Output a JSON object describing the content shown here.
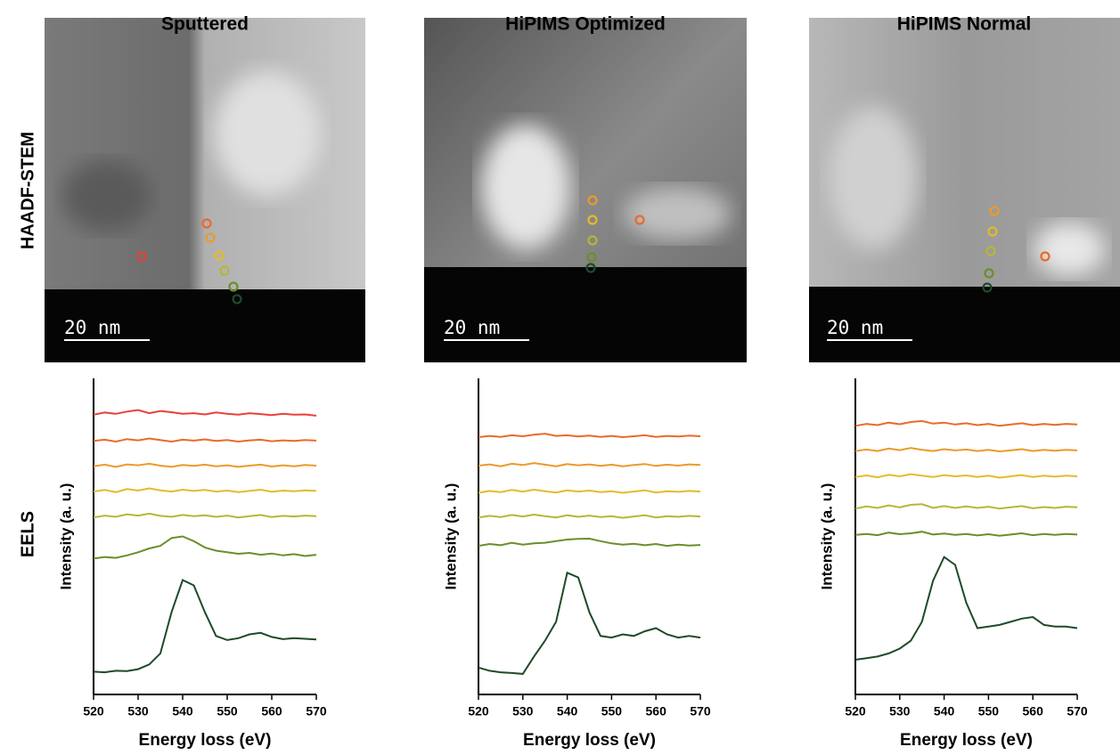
{
  "row_labels": [
    "HAADF-STEM",
    "EELS"
  ],
  "chart_data": [
    {
      "type": "line",
      "title": "Sputtered",
      "scale_bar": "20 nm",
      "x_label": "Energy loss (eV)",
      "y_label": "Intensity (a. u.)",
      "x": [
        520,
        522.5,
        525,
        527.5,
        530,
        532.5,
        535,
        537.5,
        540,
        542.5,
        545,
        547.5,
        550,
        552.5,
        555,
        557.5,
        560,
        562.5,
        565,
        567.5,
        570
      ],
      "xlim": [
        520,
        570
      ],
      "xticks": [
        520,
        530,
        540,
        550,
        560,
        570
      ],
      "ylim": [
        0,
        10
      ],
      "series": [
        {
          "color": "#e8403a",
          "values": [
            8.85,
            8.92,
            8.88,
            8.95,
            9.0,
            8.9,
            8.97,
            8.93,
            8.88,
            8.9,
            8.86,
            8.92,
            8.88,
            8.85,
            8.9,
            8.87,
            8.84,
            8.88,
            8.85,
            8.86,
            8.82
          ]
        },
        {
          "color": "#ea6a2a",
          "values": [
            8.02,
            8.06,
            8.0,
            8.08,
            8.04,
            8.1,
            8.05,
            8.0,
            8.06,
            8.03,
            8.07,
            8.02,
            8.05,
            8.0,
            8.04,
            8.06,
            8.01,
            8.04,
            8.02,
            8.05,
            8.03
          ]
        },
        {
          "color": "#eb9a2a",
          "values": [
            7.22,
            7.27,
            7.2,
            7.28,
            7.25,
            7.3,
            7.24,
            7.2,
            7.26,
            7.23,
            7.27,
            7.22,
            7.25,
            7.2,
            7.24,
            7.27,
            7.21,
            7.25,
            7.22,
            7.26,
            7.24
          ]
        },
        {
          "color": "#e3bb2a",
          "values": [
            6.42,
            6.47,
            6.4,
            6.5,
            6.45,
            6.52,
            6.46,
            6.42,
            6.48,
            6.44,
            6.47,
            6.42,
            6.45,
            6.4,
            6.44,
            6.48,
            6.41,
            6.45,
            6.43,
            6.46,
            6.44
          ]
        },
        {
          "color": "#b5b735",
          "values": [
            5.6,
            5.66,
            5.62,
            5.7,
            5.66,
            5.72,
            5.65,
            5.62,
            5.68,
            5.64,
            5.67,
            5.62,
            5.66,
            5.6,
            5.64,
            5.68,
            5.61,
            5.65,
            5.63,
            5.66,
            5.64
          ]
        },
        {
          "color": "#6b8e2a",
          "values": [
            4.3,
            4.35,
            4.32,
            4.4,
            4.5,
            4.62,
            4.7,
            4.95,
            5.0,
            4.85,
            4.65,
            4.55,
            4.5,
            4.45,
            4.48,
            4.42,
            4.46,
            4.4,
            4.44,
            4.38,
            4.42
          ]
        },
        {
          "color": "#1f4a2a",
          "values": [
            0.72,
            0.7,
            0.75,
            0.74,
            0.8,
            0.95,
            1.3,
            2.6,
            3.62,
            3.45,
            2.6,
            1.85,
            1.72,
            1.78,
            1.9,
            1.95,
            1.82,
            1.75,
            1.78,
            1.76,
            1.74
          ]
        }
      ]
    },
    {
      "type": "line",
      "title": "HiPIMS Optimized",
      "scale_bar": "20 nm",
      "x_label": "Energy loss (eV)",
      "y_label": "Intensity (a. u.)",
      "x": [
        520,
        522.5,
        525,
        527.5,
        530,
        532.5,
        535,
        537.5,
        540,
        542.5,
        545,
        547.5,
        550,
        552.5,
        555,
        557.5,
        560,
        562.5,
        565,
        567.5,
        570
      ],
      "xlim": [
        520,
        570
      ],
      "xticks": [
        520,
        530,
        540,
        550,
        560,
        570
      ],
      "ylim": [
        0,
        10
      ],
      "series": [
        {
          "color": "#ea6a2a",
          "values": [
            8.14,
            8.18,
            8.15,
            8.2,
            8.17,
            8.22,
            8.25,
            8.18,
            8.2,
            8.16,
            8.19,
            8.15,
            8.18,
            8.14,
            8.17,
            8.2,
            8.15,
            8.18,
            8.16,
            8.19,
            8.17
          ]
        },
        {
          "color": "#eb9a2a",
          "values": [
            7.24,
            7.28,
            7.22,
            7.3,
            7.26,
            7.32,
            7.27,
            7.22,
            7.29,
            7.25,
            7.28,
            7.23,
            7.27,
            7.22,
            7.26,
            7.29,
            7.23,
            7.27,
            7.24,
            7.28,
            7.26
          ]
        },
        {
          "color": "#e3bb2a",
          "values": [
            6.38,
            6.44,
            6.4,
            6.47,
            6.42,
            6.48,
            6.43,
            6.39,
            6.46,
            6.42,
            6.45,
            6.4,
            6.43,
            6.38,
            6.42,
            6.46,
            6.39,
            6.43,
            6.41,
            6.44,
            6.42
          ]
        },
        {
          "color": "#b5b735",
          "values": [
            5.6,
            5.65,
            5.61,
            5.68,
            5.63,
            5.69,
            5.64,
            5.6,
            5.67,
            5.62,
            5.66,
            5.61,
            5.64,
            5.59,
            5.63,
            5.67,
            5.6,
            5.64,
            5.62,
            5.65,
            5.63
          ]
        },
        {
          "color": "#6b8e2a",
          "values": [
            4.7,
            4.76,
            4.72,
            4.8,
            4.74,
            4.78,
            4.8,
            4.85,
            4.9,
            4.92,
            4.93,
            4.85,
            4.78,
            4.74,
            4.77,
            4.72,
            4.76,
            4.7,
            4.74,
            4.71,
            4.73
          ]
        },
        {
          "color": "#1f4a2a",
          "values": [
            0.85,
            0.75,
            0.7,
            0.68,
            0.65,
            1.2,
            1.7,
            2.3,
            3.85,
            3.7,
            2.6,
            1.85,
            1.8,
            1.9,
            1.85,
            2.0,
            2.1,
            1.9,
            1.8,
            1.85,
            1.8
          ]
        }
      ]
    },
    {
      "type": "line",
      "title": "HiPIMS Normal",
      "scale_bar": "20 nm",
      "x_label": "Energy loss (eV)",
      "y_label": "Intensity (a. u.)",
      "x": [
        520,
        522.5,
        525,
        527.5,
        530,
        532.5,
        535,
        537.5,
        540,
        542.5,
        545,
        547.5,
        550,
        552.5,
        555,
        557.5,
        560,
        562.5,
        565,
        567.5,
        570
      ],
      "xlim": [
        520,
        570
      ],
      "xticks": [
        520,
        530,
        540,
        550,
        560,
        570
      ],
      "ylim": [
        0,
        10
      ],
      "series": [
        {
          "color": "#ea6a2a",
          "values": [
            8.5,
            8.56,
            8.52,
            8.6,
            8.55,
            8.62,
            8.65,
            8.57,
            8.6,
            8.54,
            8.58,
            8.52,
            8.56,
            8.5,
            8.54,
            8.58,
            8.52,
            8.56,
            8.53,
            8.56,
            8.54
          ]
        },
        {
          "color": "#eb9a2a",
          "values": [
            7.7,
            7.75,
            7.7,
            7.78,
            7.73,
            7.8,
            7.74,
            7.7,
            7.76,
            7.72,
            7.75,
            7.7,
            7.74,
            7.69,
            7.72,
            7.76,
            7.7,
            7.74,
            7.71,
            7.74,
            7.72
          ]
        },
        {
          "color": "#e3bb2a",
          "values": [
            6.88,
            6.93,
            6.87,
            6.95,
            6.9,
            6.97,
            6.92,
            6.88,
            6.94,
            6.9,
            6.93,
            6.88,
            6.92,
            6.86,
            6.9,
            6.94,
            6.88,
            6.92,
            6.89,
            6.92,
            6.9
          ]
        },
        {
          "color": "#b5b735",
          "values": [
            5.88,
            5.95,
            5.9,
            5.98,
            5.92,
            6.0,
            6.02,
            5.9,
            5.96,
            5.9,
            5.95,
            5.9,
            5.94,
            5.88,
            5.92,
            5.96,
            5.89,
            5.93,
            5.9,
            5.94,
            5.92
          ]
        },
        {
          "color": "#6b8e2a",
          "values": [
            5.05,
            5.08,
            5.04,
            5.12,
            5.07,
            5.1,
            5.15,
            5.06,
            5.09,
            5.05,
            5.08,
            5.03,
            5.07,
            5.02,
            5.06,
            5.1,
            5.04,
            5.08,
            5.05,
            5.08,
            5.06
          ]
        },
        {
          "color": "#1f4a2a",
          "values": [
            1.1,
            1.15,
            1.2,
            1.3,
            1.45,
            1.7,
            2.3,
            3.6,
            4.35,
            4.1,
            2.9,
            2.1,
            2.15,
            2.2,
            2.3,
            2.4,
            2.45,
            2.2,
            2.15,
            2.15,
            2.1
          ]
        }
      ]
    }
  ]
}
